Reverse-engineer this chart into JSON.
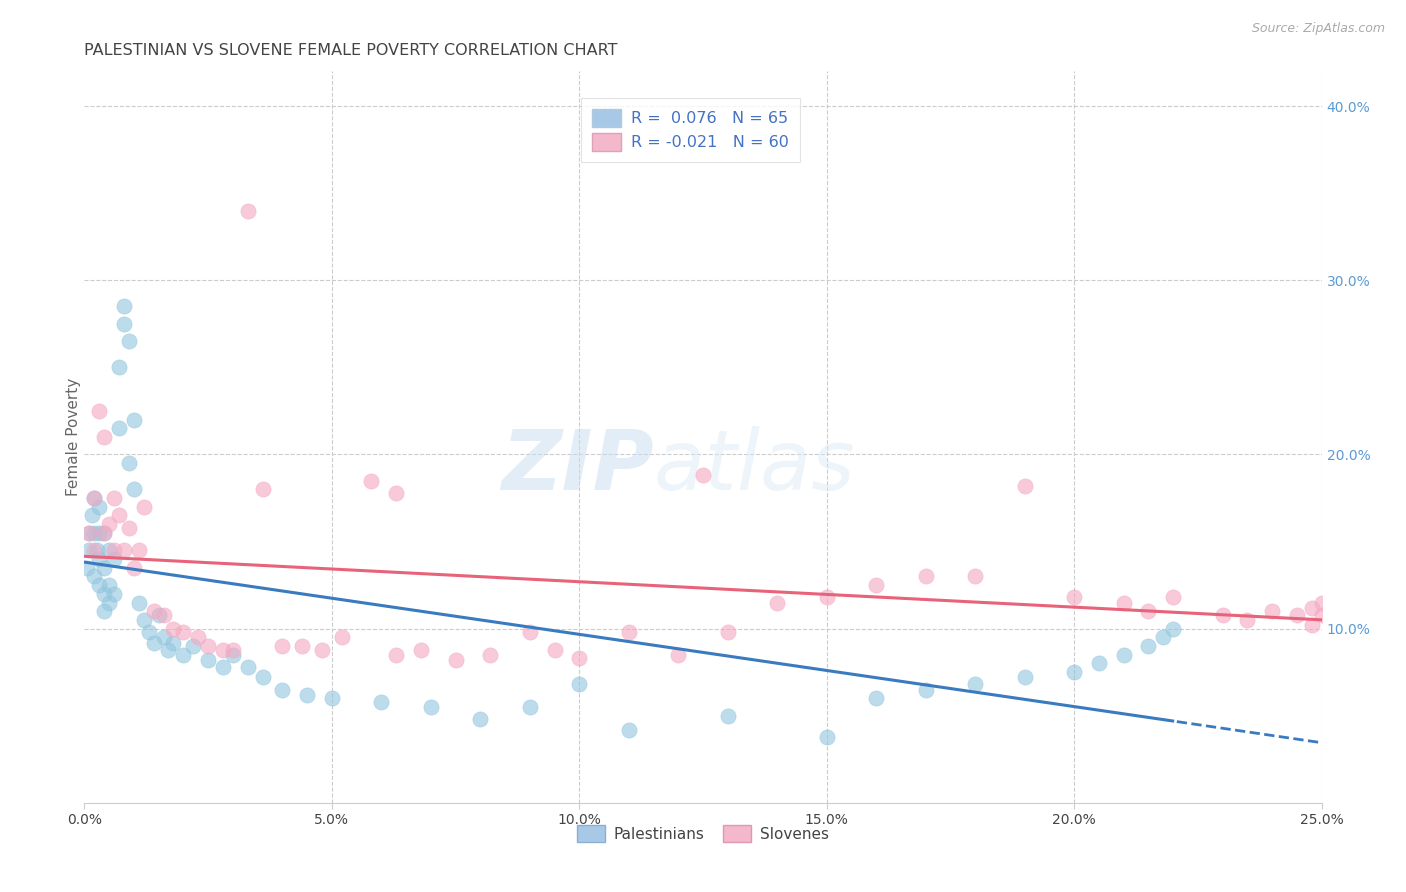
{
  "title": "PALESTINIAN VS SLOVENE FEMALE POVERTY CORRELATION CHART",
  "source": "Source: ZipAtlas.com",
  "ylabel": "Female Poverty",
  "xlim": [
    0.0,
    0.25
  ],
  "ylim": [
    0.0,
    0.42
  ],
  "watermark_zip": "ZIP",
  "watermark_atlas": "atlas",
  "legend_r1_pre": "R = ",
  "legend_r1_val": " 0.076",
  "legend_r1_n": "  N = ",
  "legend_r1_nval": "65",
  "legend_r2_pre": "R = ",
  "legend_r2_val": "-0.021",
  "legend_r2_n": "  N = ",
  "legend_r2_nval": "60",
  "palestinian_color": "#92c5de",
  "slovene_color": "#f4a8c0",
  "blue_line_color": "#3a7bbf",
  "pink_line_color": "#e8637a",
  "grid_color": "#cccccc",
  "background_color": "#ffffff",
  "title_color": "#444444",
  "right_tick_color": "#5b9bd5",
  "legend_color": "#4472c4",
  "pal_x": [
    0.0005,
    0.001,
    0.001,
    0.0015,
    0.002,
    0.002,
    0.002,
    0.0025,
    0.003,
    0.003,
    0.003,
    0.003,
    0.004,
    0.004,
    0.004,
    0.004,
    0.005,
    0.005,
    0.005,
    0.006,
    0.006,
    0.007,
    0.007,
    0.008,
    0.008,
    0.009,
    0.009,
    0.01,
    0.01,
    0.011,
    0.012,
    0.013,
    0.014,
    0.015,
    0.016,
    0.017,
    0.018,
    0.02,
    0.022,
    0.025,
    0.028,
    0.03,
    0.033,
    0.036,
    0.04,
    0.045,
    0.05,
    0.06,
    0.07,
    0.08,
    0.09,
    0.1,
    0.11,
    0.13,
    0.15,
    0.16,
    0.17,
    0.18,
    0.19,
    0.2,
    0.205,
    0.21,
    0.215,
    0.218,
    0.22
  ],
  "pal_y": [
    0.135,
    0.155,
    0.145,
    0.165,
    0.175,
    0.155,
    0.13,
    0.145,
    0.17,
    0.155,
    0.14,
    0.125,
    0.155,
    0.135,
    0.12,
    0.11,
    0.145,
    0.125,
    0.115,
    0.14,
    0.12,
    0.25,
    0.215,
    0.275,
    0.285,
    0.195,
    0.265,
    0.18,
    0.22,
    0.115,
    0.105,
    0.098,
    0.092,
    0.108,
    0.095,
    0.088,
    0.092,
    0.085,
    0.09,
    0.082,
    0.078,
    0.085,
    0.078,
    0.072,
    0.065,
    0.062,
    0.06,
    0.058,
    0.055,
    0.048,
    0.055,
    0.068,
    0.042,
    0.05,
    0.038,
    0.06,
    0.065,
    0.068,
    0.072,
    0.075,
    0.08,
    0.085,
    0.09,
    0.095,
    0.1
  ],
  "slo_x": [
    0.001,
    0.002,
    0.002,
    0.003,
    0.004,
    0.004,
    0.005,
    0.006,
    0.006,
    0.007,
    0.008,
    0.009,
    0.01,
    0.011,
    0.012,
    0.014,
    0.016,
    0.018,
    0.02,
    0.023,
    0.025,
    0.028,
    0.03,
    0.033,
    0.036,
    0.04,
    0.044,
    0.048,
    0.052,
    0.058,
    0.063,
    0.063,
    0.068,
    0.075,
    0.082,
    0.09,
    0.095,
    0.1,
    0.11,
    0.12,
    0.125,
    0.13,
    0.14,
    0.15,
    0.16,
    0.17,
    0.18,
    0.19,
    0.2,
    0.21,
    0.215,
    0.22,
    0.23,
    0.235,
    0.24,
    0.245,
    0.248,
    0.248,
    0.25,
    0.25
  ],
  "slo_y": [
    0.155,
    0.175,
    0.145,
    0.225,
    0.21,
    0.155,
    0.16,
    0.175,
    0.145,
    0.165,
    0.145,
    0.158,
    0.135,
    0.145,
    0.17,
    0.11,
    0.108,
    0.1,
    0.098,
    0.095,
    0.09,
    0.088,
    0.088,
    0.34,
    0.18,
    0.09,
    0.09,
    0.088,
    0.095,
    0.185,
    0.085,
    0.178,
    0.088,
    0.082,
    0.085,
    0.098,
    0.088,
    0.083,
    0.098,
    0.085,
    0.188,
    0.098,
    0.115,
    0.118,
    0.125,
    0.13,
    0.13,
    0.182,
    0.118,
    0.115,
    0.11,
    0.118,
    0.108,
    0.105,
    0.11,
    0.108,
    0.112,
    0.102,
    0.115,
    0.108
  ]
}
